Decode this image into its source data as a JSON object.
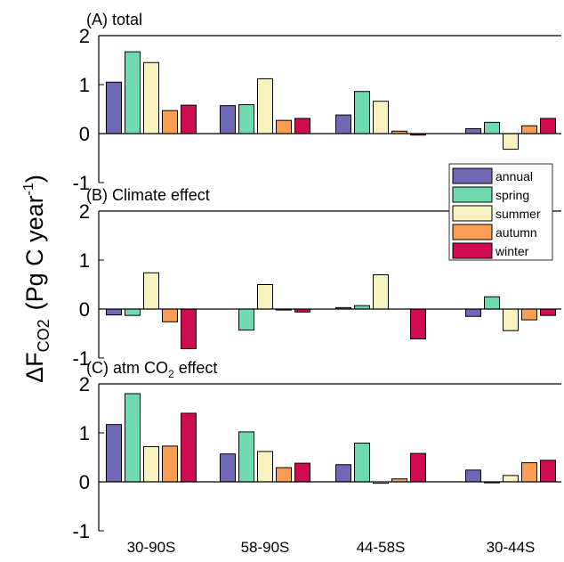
{
  "chart_data": {
    "type": "bar",
    "ylabel": "ΔF",
    "ylabel_sub": "CO2",
    "ylabel_unit": "(Pg C year",
    "ylabel_unit_sup": "-1",
    "ylabel_unit_end": ")",
    "categories": [
      "30-90S",
      "58-90S",
      "44-58S",
      "30-44S"
    ],
    "ylim": [
      -1,
      2
    ],
    "yticks": [
      "2",
      "1",
      "0",
      "-1"
    ],
    "legend": {
      "position": "right, between panels A and B",
      "entries": [
        "annual",
        "spring",
        "summer",
        "autumn",
        "winter"
      ]
    },
    "series_colors": {
      "annual": "#7068b4",
      "spring": "#6fd9b0",
      "summer": "#f8f2c0",
      "autumn": "#fb9d54",
      "winter": "#cf0c52"
    },
    "panels": [
      {
        "title": "(A) total",
        "series": [
          {
            "name": "annual",
            "values": [
              1.05,
              0.57,
              0.38,
              0.1
            ]
          },
          {
            "name": "spring",
            "values": [
              1.67,
              0.59,
              0.86,
              0.23
            ]
          },
          {
            "name": "summer",
            "values": [
              1.45,
              1.12,
              0.66,
              -0.32
            ]
          },
          {
            "name": "autumn",
            "values": [
              0.47,
              0.27,
              0.05,
              0.16
            ]
          },
          {
            "name": "winter",
            "values": [
              0.58,
              0.31,
              -0.03,
              0.31
            ]
          }
        ]
      },
      {
        "title": "(B) Climate effect",
        "series": [
          {
            "name": "annual",
            "values": [
              -0.12,
              0.0,
              0.03,
              -0.15
            ]
          },
          {
            "name": "spring",
            "values": [
              -0.13,
              -0.43,
              0.07,
              0.25
            ]
          },
          {
            "name": "summer",
            "values": [
              0.74,
              0.5,
              0.7,
              -0.44
            ]
          },
          {
            "name": "autumn",
            "values": [
              -0.26,
              -0.02,
              0.0,
              -0.22
            ]
          },
          {
            "name": "winter",
            "values": [
              -0.81,
              -0.06,
              -0.61,
              -0.13
            ]
          }
        ]
      },
      {
        "title": "(C) atm CO",
        "title_sub": "2",
        "title_end": " effect",
        "series": [
          {
            "name": "annual",
            "values": [
              1.17,
              0.57,
              0.35,
              0.24
            ]
          },
          {
            "name": "spring",
            "values": [
              1.8,
              1.02,
              0.79,
              -0.02
            ]
          },
          {
            "name": "summer",
            "values": [
              0.72,
              0.62,
              -0.03,
              0.13
            ]
          },
          {
            "name": "autumn",
            "values": [
              0.73,
              0.29,
              0.06,
              0.39
            ]
          },
          {
            "name": "winter",
            "values": [
              1.4,
              0.38,
              0.58,
              0.44
            ]
          }
        ]
      }
    ]
  }
}
